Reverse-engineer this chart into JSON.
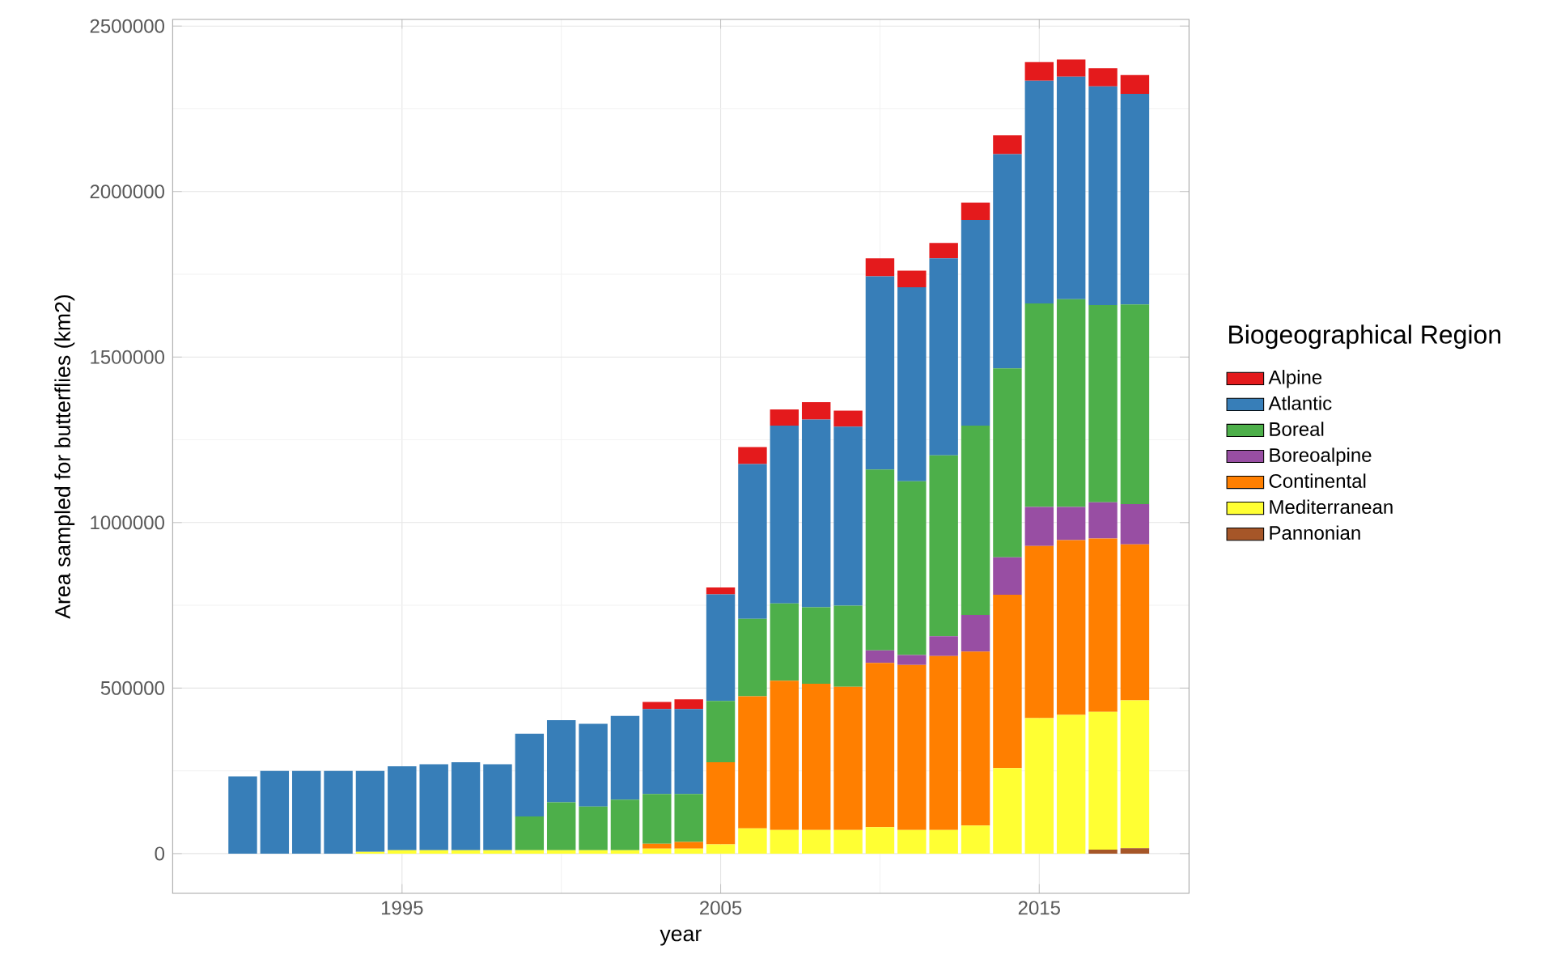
{
  "chart_data": {
    "type": "bar",
    "stacked": true,
    "xlabel": "year",
    "ylabel": "Area sampled for butterflies (km2)",
    "legend_title": "Biogeographical Region",
    "legend": "right",
    "grid": true,
    "x": [
      1990,
      1991,
      1992,
      1993,
      1994,
      1995,
      1996,
      1997,
      1998,
      1999,
      2000,
      2001,
      2002,
      2003,
      2004,
      2005,
      2006,
      2007,
      2008,
      2009,
      2010,
      2011,
      2012,
      2013,
      2014,
      2015,
      2016,
      2017,
      2018
    ],
    "xlim": [
      1987.8,
      2019.7
    ],
    "xticks": [
      1995,
      2005,
      2015
    ],
    "ylim": [
      -120000,
      2520000
    ],
    "yticks": [
      0,
      500000,
      1000000,
      1500000,
      2000000,
      2500000
    ],
    "series": [
      {
        "name": "Pannonian",
        "color": "#a65628",
        "values": [
          null,
          null,
          null,
          null,
          null,
          null,
          null,
          null,
          null,
          null,
          null,
          null,
          null,
          null,
          null,
          null,
          null,
          null,
          null,
          null,
          null,
          null,
          null,
          null,
          null,
          null,
          null,
          12000,
          16000
        ]
      },
      {
        "name": "Mediterranean",
        "color": "#ffff33",
        "values": [
          null,
          null,
          null,
          null,
          5000,
          10000,
          10000,
          10000,
          10000,
          10000,
          10000,
          10000,
          10000,
          15000,
          15000,
          28000,
          76000,
          71000,
          71000,
          71000,
          80000,
          71000,
          71000,
          85000,
          258000,
          409000,
          419000,
          416000,
          447000
        ]
      },
      {
        "name": "Continental",
        "color": "#ff7f00",
        "values": [
          null,
          null,
          null,
          null,
          null,
          null,
          null,
          null,
          null,
          null,
          null,
          null,
          null,
          15000,
          20000,
          248000,
          399000,
          451000,
          442000,
          433000,
          496000,
          499000,
          526000,
          525000,
          524000,
          520000,
          528000,
          524000,
          471000
        ]
      },
      {
        "name": "Boreoalpine",
        "color": "#984ea3",
        "values": [
          null,
          null,
          null,
          null,
          null,
          null,
          null,
          null,
          null,
          null,
          null,
          null,
          null,
          null,
          null,
          null,
          null,
          null,
          null,
          null,
          38000,
          30000,
          60000,
          111000,
          113000,
          118000,
          100000,
          109000,
          122000
        ]
      },
      {
        "name": "Boreal",
        "color": "#4daf4a",
        "values": [
          null,
          null,
          null,
          null,
          null,
          null,
          null,
          null,
          null,
          102000,
          145000,
          132000,
          153000,
          150000,
          145000,
          185000,
          234000,
          234000,
          231000,
          245000,
          546000,
          525000,
          546000,
          572000,
          571000,
          615000,
          628000,
          596000,
          603000
        ]
      },
      {
        "name": "Atlantic",
        "color": "#377eb8",
        "values": [
          233000,
          250000,
          250000,
          250000,
          245000,
          254000,
          260000,
          266000,
          260000,
          250000,
          248000,
          250000,
          253000,
          257000,
          257000,
          322000,
          468000,
          537000,
          567000,
          541000,
          584000,
          586000,
          595000,
          621000,
          647000,
          673000,
          672000,
          661000,
          636000
        ]
      },
      {
        "name": "Alpine",
        "color": "#e41a1c",
        "values": [
          null,
          null,
          null,
          null,
          null,
          null,
          null,
          null,
          null,
          null,
          null,
          null,
          null,
          21000,
          29000,
          21000,
          51000,
          49000,
          53000,
          48000,
          54000,
          50000,
          47000,
          52000,
          57000,
          56000,
          52000,
          55000,
          57000
        ]
      }
    ]
  }
}
